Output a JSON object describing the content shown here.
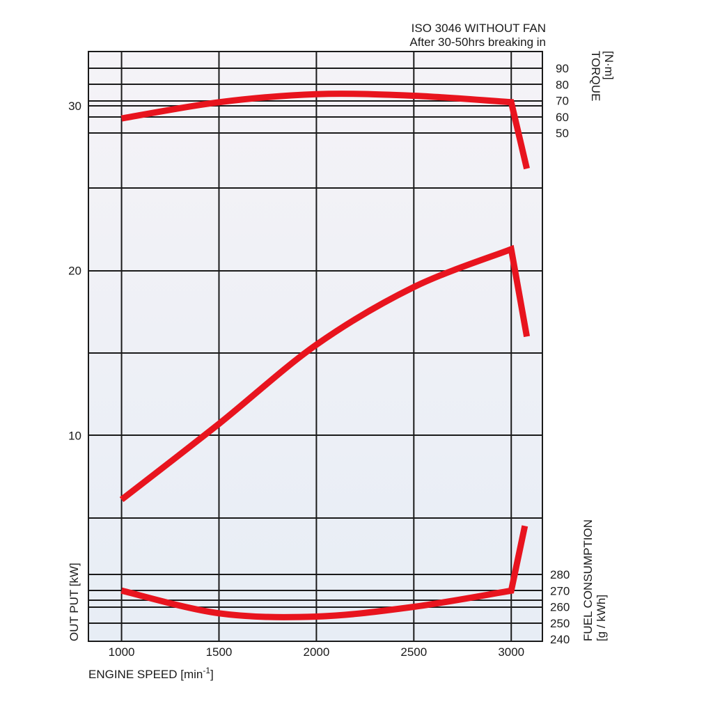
{
  "chart_data": {
    "type": "line",
    "notes": [
      "ISO 3046 WITHOUT FAN",
      "After 30-50hrs breaking in"
    ],
    "xlabel": {
      "main": "ENGINE SPEED [min",
      "sup": "-1",
      "end": "]"
    },
    "x_ticks": [
      1000,
      1500,
      2000,
      2500,
      3000
    ],
    "xlim": [
      830,
      3160
    ],
    "axes": {
      "output": {
        "title": "OUT PUT [kW]",
        "ticks": [
          10,
          20,
          30
        ],
        "range": [
          -2.5,
          33.3
        ]
      },
      "torque": {
        "title": [
          "TORQUE",
          "[N·m]"
        ],
        "ticks": [
          50,
          60,
          70,
          80,
          90
        ],
        "range": [
          50,
          90
        ]
      },
      "fuel": {
        "title": [
          "FUEL CONSUMPTION",
          "[g / kWh]"
        ],
        "ticks": [
          240,
          250,
          260,
          270,
          280
        ],
        "range": [
          240,
          280
        ]
      }
    },
    "grid": true,
    "series": [
      {
        "axis": "torque",
        "color": "#e8141e",
        "points": [
          [
            1000,
            59
          ],
          [
            1500,
            69
          ],
          [
            2000,
            74
          ],
          [
            2500,
            73
          ],
          [
            3000,
            69
          ],
          [
            3080,
            28
          ]
        ]
      },
      {
        "axis": "output",
        "color": "#e8141e",
        "points": [
          [
            1000,
            6.1
          ],
          [
            1500,
            10.7
          ],
          [
            2000,
            15.5
          ],
          [
            2500,
            19
          ],
          [
            3000,
            21.3
          ],
          [
            3080,
            16
          ]
        ]
      },
      {
        "axis": "fuel",
        "color": "#e8141e",
        "points": [
          [
            1000,
            270
          ],
          [
            1500,
            256
          ],
          [
            2000,
            254
          ],
          [
            2500,
            260
          ],
          [
            3000,
            270
          ],
          [
            3070,
            310
          ]
        ]
      }
    ]
  }
}
